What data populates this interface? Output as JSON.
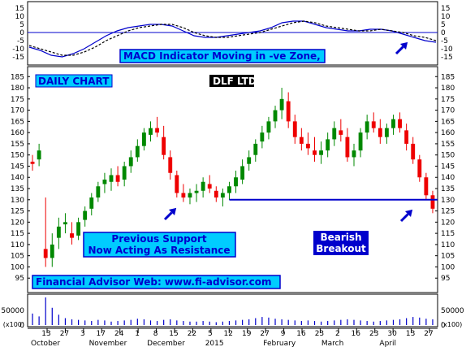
{
  "chart_data": {
    "title": "DLF LTD",
    "type": "candlestick",
    "panels": {
      "macd": {
        "yticks": [
          "15",
          "10",
          "5",
          "0",
          "-5",
          "-10",
          "-15"
        ],
        "ylim": [
          -18,
          17
        ],
        "series": [
          {
            "kind": "macd",
            "color": "#0000cc",
            "style": "solid",
            "values": [
              -9,
              -11,
              -14,
              -15,
              -13,
              -10,
              -6,
              -2,
              1,
              3,
              4,
              5,
              5,
              4,
              1,
              -2,
              -3,
              -3,
              -2,
              -1,
              0,
              1,
              3,
              6,
              7,
              7,
              5,
              3,
              2,
              1,
              1,
              2,
              2,
              1,
              -1,
              -3,
              -5,
              -6
            ]
          },
          {
            "kind": "signal",
            "color": "#000000",
            "style": "dashed",
            "values": [
              -8,
              -10,
              -12,
              -14,
              -14,
              -12,
              -9,
              -5,
              -2,
              1,
              3,
              4,
              5,
              5,
              3,
              0,
              -2,
              -3,
              -3,
              -2,
              -1,
              0,
              2,
              4,
              6,
              7,
              6,
              4,
              3,
              2,
              1,
              1,
              2,
              1,
              0,
              -2,
              -3,
              -5
            ]
          }
        ]
      },
      "price": {
        "yticks": [
          "185",
          "180",
          "175",
          "170",
          "165",
          "160",
          "155",
          "150",
          "145",
          "140",
          "135",
          "130",
          "125",
          "120",
          "115",
          "110",
          "105",
          "100",
          "95"
        ],
        "ylim": [
          90,
          188
        ],
        "support_line": 130,
        "candles": [
          [
            147,
            150,
            143,
            146
          ],
          [
            148,
            155,
            145,
            152
          ],
          [
            108,
            131,
            100,
            104
          ],
          [
            104,
            115,
            100,
            110
          ],
          [
            113,
            122,
            108,
            118
          ],
          [
            119,
            124,
            115,
            120
          ],
          [
            115,
            120,
            110,
            113
          ],
          [
            114,
            122,
            112,
            120
          ],
          [
            121,
            127,
            118,
            125
          ],
          [
            126,
            133,
            123,
            131
          ],
          [
            131,
            138,
            129,
            136
          ],
          [
            137,
            142,
            133,
            139
          ],
          [
            138,
            144,
            134,
            141
          ],
          [
            141,
            145,
            136,
            138
          ],
          [
            139,
            147,
            136,
            145
          ],
          [
            145,
            152,
            142,
            149
          ],
          [
            149,
            157,
            147,
            154
          ],
          [
            154,
            162,
            152,
            160
          ],
          [
            159,
            165,
            156,
            162
          ],
          [
            162,
            167,
            158,
            160
          ],
          [
            158,
            163,
            148,
            150
          ],
          [
            149,
            152,
            139,
            142
          ],
          [
            141,
            143,
            131,
            133
          ],
          [
            133,
            137,
            129,
            131
          ],
          [
            131,
            135,
            128,
            133
          ],
          [
            133,
            137,
            129,
            134
          ],
          [
            134,
            140,
            131,
            138
          ],
          [
            137,
            141,
            133,
            135
          ],
          [
            134,
            136,
            129,
            131
          ],
          [
            131,
            135,
            127,
            133
          ],
          [
            133,
            138,
            130,
            136
          ],
          [
            136,
            143,
            133,
            140
          ],
          [
            139,
            148,
            137,
            145
          ],
          [
            146,
            152,
            143,
            149
          ],
          [
            150,
            157,
            147,
            155
          ],
          [
            156,
            163,
            153,
            160
          ],
          [
            160,
            167,
            157,
            165
          ],
          [
            165,
            172,
            162,
            170
          ],
          [
            170,
            180,
            166,
            175
          ],
          [
            174,
            178,
            162,
            165
          ],
          [
            165,
            168,
            155,
            158
          ],
          [
            158,
            162,
            152,
            155
          ],
          [
            155,
            160,
            150,
            153
          ],
          [
            152,
            158,
            147,
            150
          ],
          [
            150,
            156,
            146,
            152
          ],
          [
            152,
            160,
            149,
            157
          ],
          [
            157,
            165,
            154,
            162
          ],
          [
            161,
            166,
            156,
            159
          ],
          [
            158,
            162,
            147,
            149
          ],
          [
            149,
            155,
            145,
            152
          ],
          [
            152,
            162,
            149,
            160
          ],
          [
            160,
            168,
            157,
            165
          ],
          [
            165,
            169,
            160,
            162
          ],
          [
            162,
            166,
            155,
            158
          ],
          [
            158,
            164,
            155,
            162
          ],
          [
            162,
            168,
            159,
            166
          ],
          [
            166,
            169,
            160,
            162
          ],
          [
            161,
            164,
            152,
            155
          ],
          [
            155,
            158,
            146,
            148
          ],
          [
            148,
            150,
            138,
            140
          ],
          [
            140,
            142,
            130,
            132
          ],
          [
            132,
            134,
            124,
            126
          ]
        ]
      },
      "volume": {
        "yticks": [
          "50000",
          "0"
        ],
        "unit": "x100",
        "values": [
          20,
          15,
          48,
          30,
          18,
          12,
          10,
          9,
          8,
          7,
          9,
          8,
          6,
          7,
          8,
          9,
          11,
          10,
          8,
          7,
          9,
          10,
          8,
          7,
          6,
          6,
          7,
          6,
          5,
          6,
          7,
          8,
          9,
          10,
          12,
          14,
          13,
          11,
          10,
          9,
          8,
          7,
          8,
          7,
          6,
          7,
          8,
          9,
          10,
          9,
          8,
          7,
          6,
          7,
          8,
          9,
          10,
          12,
          14,
          13,
          11,
          10
        ]
      }
    },
    "x_axis": {
      "ticks": [
        "13",
        "27",
        "3",
        "17",
        "24",
        "1",
        "8",
        "15",
        "22",
        "5",
        "12",
        "19",
        "27",
        "9",
        "16",
        "23",
        "2",
        "16",
        "23",
        "30",
        "13",
        "27"
      ],
      "months": [
        "October",
        "November",
        "December",
        "2015",
        "February",
        "March",
        "April"
      ]
    }
  },
  "annotations": {
    "macd_banner": "MACD Indicator Moving in -ve Zone,",
    "daily_chart": "DAILY CHART",
    "stock_name": "DLF LTD",
    "support_line1": "Previous Support",
    "support_line2": "Now Acting As Resistance",
    "bearish_line1": "Bearish",
    "bearish_line2": "Breakout",
    "website": "Financial Advisor Web: www.fi-advisor.com"
  },
  "colors": {
    "up": "#008800",
    "down": "#ee0000",
    "support_line": "#0000cc",
    "macd": "#0000cc",
    "signal": "#000000",
    "volume": "#0000cc",
    "banner_bg": "#00ccff",
    "banner_border": "#0000cc",
    "box_dark": "#0000cc",
    "box_black": "#000000"
  },
  "icons": {
    "arrow": "up-right-arrow-icon"
  }
}
